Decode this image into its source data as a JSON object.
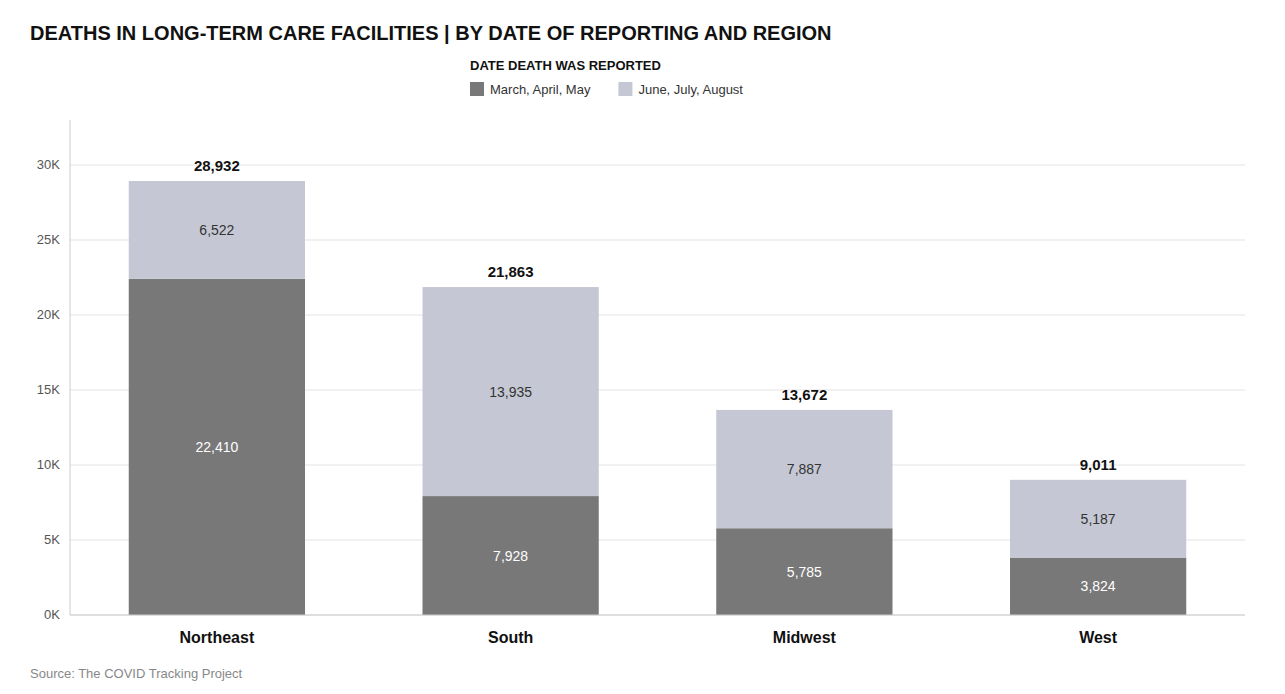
{
  "chart_data": {
    "type": "bar",
    "title": "DEATHS IN LONG-TERM CARE FACILITIES | BY DATE OF REPORTING AND REGION",
    "categories": [
      "Northeast",
      "South",
      "Midwest",
      "West"
    ],
    "stacked": true,
    "series": [
      {
        "name": "March, April, May",
        "color": "#787878",
        "values": [
          22410,
          7928,
          5785,
          3824
        ],
        "value_labels": [
          "22,410",
          "7,928",
          "5,785",
          "3,824"
        ]
      },
      {
        "name": "June, July, August",
        "color": "#c5c8d4",
        "values": [
          6522,
          13935,
          7887,
          5187
        ],
        "value_labels": [
          "6,522",
          "13,935",
          "7,887",
          "5,187"
        ]
      }
    ],
    "totals": [
      28932,
      21863,
      13672,
      9011
    ],
    "total_labels": [
      "28,932",
      "21,863",
      "13,672",
      "9,011"
    ],
    "data_labels": true,
    "legend": "top",
    "legend_title": "DATE DEATH WAS REPORTED",
    "source": "Source: The COVID Tracking Project",
    "ylim": [
      0,
      33000
    ],
    "yticks": [
      {
        "value": 0,
        "label": "0K"
      },
      {
        "value": 5000,
        "label": "5K"
      },
      {
        "value": 10000,
        "label": "10K"
      },
      {
        "value": 15000,
        "label": "15K"
      },
      {
        "value": 20000,
        "label": "20K"
      },
      {
        "value": 25000,
        "label": "25K"
      },
      {
        "value": 30000,
        "label": "30K"
      }
    ],
    "grid": true
  }
}
